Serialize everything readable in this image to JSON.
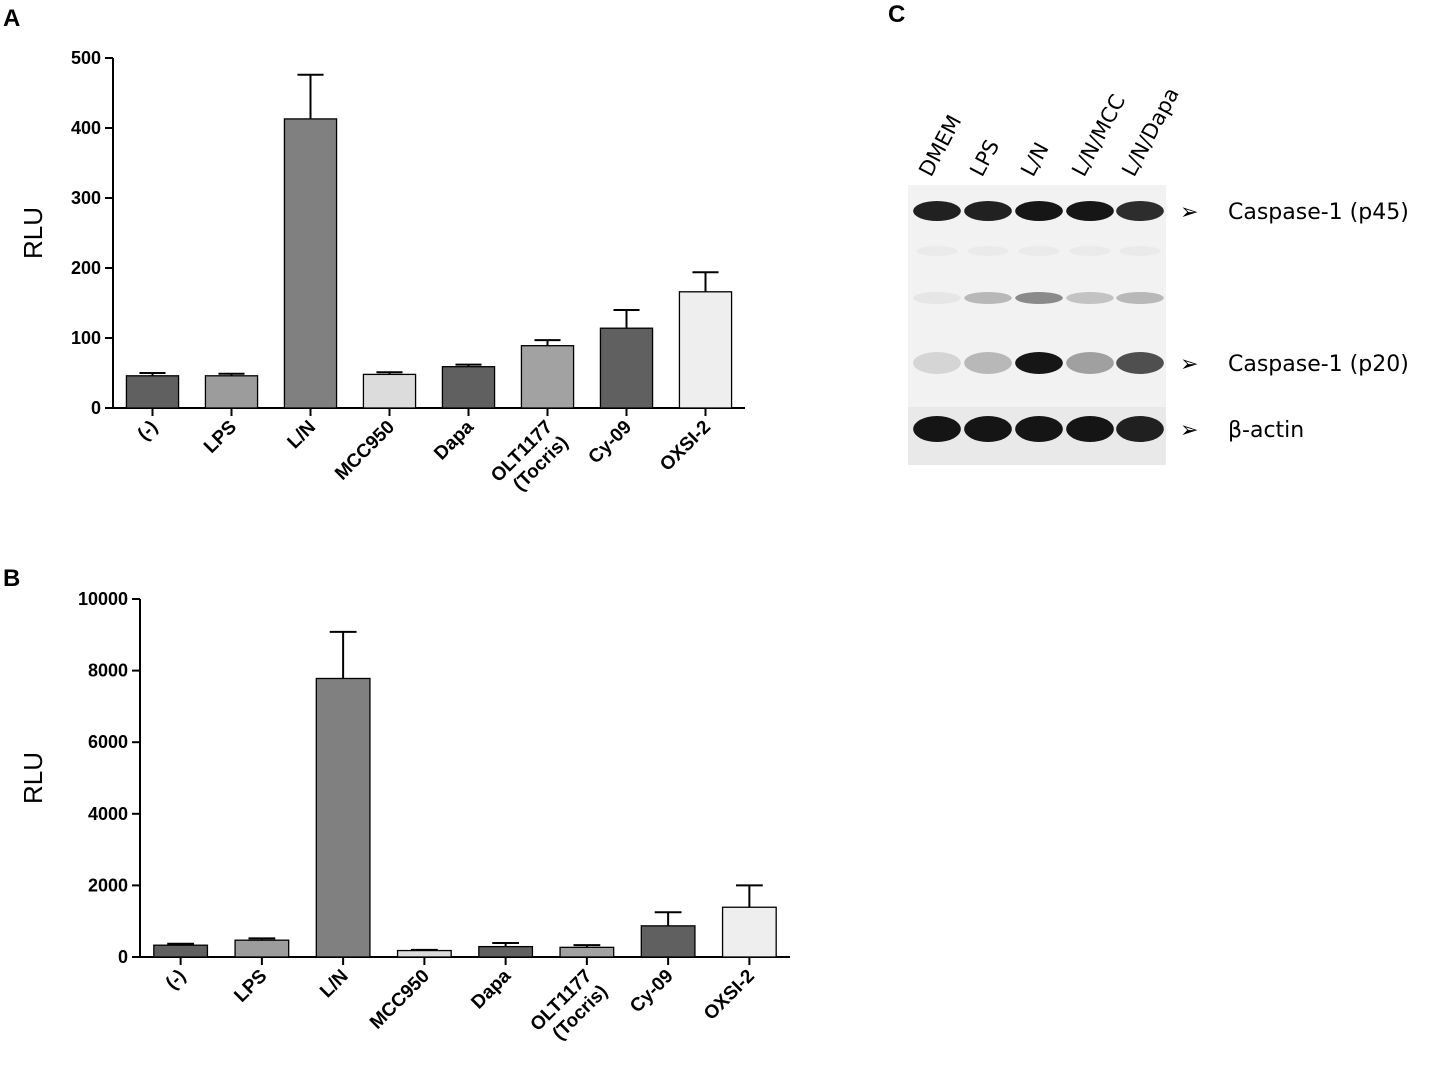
{
  "panels": {
    "a": "A",
    "b": "B",
    "c": "C"
  },
  "chart_data": [
    {
      "panel": "A",
      "type": "bar",
      "ylabel": "RLU",
      "ylim": [
        0,
        500
      ],
      "yticks": [
        "0",
        "100",
        "200",
        "300",
        "400",
        "500"
      ],
      "categories": [
        "(-)",
        "LPS",
        "L/N",
        "MCC950",
        "Dapa",
        "OLT1177\n(Tocris)",
        "Cy-09",
        "OXSI-2"
      ],
      "values": [
        46,
        46,
        413,
        48,
        59,
        89,
        114,
        166
      ],
      "errors": [
        4,
        3,
        63,
        3,
        3,
        8,
        26,
        28
      ],
      "colors": [
        "#606060",
        "#9c9c9c",
        "#808080",
        "#dcdcdc",
        "#606060",
        "#a2a2a2",
        "#606060",
        "#eeeeee"
      ],
      "grid": false
    },
    {
      "panel": "B",
      "type": "bar",
      "ylabel": "RLU",
      "ylim": [
        0,
        10000
      ],
      "yticks": [
        "0",
        "2000",
        "4000",
        "6000",
        "8000",
        "10000"
      ],
      "categories": [
        "(-)",
        "LPS",
        "L/N",
        "MCC950",
        "Dapa",
        "OLT1177\n(Tocris)",
        "Cy-09",
        "OXSI-2"
      ],
      "values": [
        330,
        470,
        7780,
        180,
        290,
        270,
        870,
        1390
      ],
      "errors": [
        40,
        50,
        1300,
        20,
        100,
        60,
        380,
        610
      ],
      "colors": [
        "#606060",
        "#9c9c9c",
        "#808080",
        "#dcdcdc",
        "#606060",
        "#a2a2a2",
        "#606060",
        "#eeeeee"
      ],
      "grid": false
    }
  ],
  "western_blot": {
    "lanes": [
      "DMEM",
      "LPS",
      "L/N",
      "L/N/MCC",
      "L/N/Dapa"
    ],
    "bands": [
      {
        "label": "Caspase-1 (p45)",
        "intensity": [
          0.9,
          0.9,
          0.95,
          0.95,
          0.85
        ]
      },
      {
        "label": "",
        "intensity": [
          0.05,
          0.25,
          0.45,
          0.2,
          0.25
        ]
      },
      {
        "label": "Caspase-1 (p20)",
        "intensity": [
          0.12,
          0.25,
          0.95,
          0.35,
          0.7
        ]
      },
      {
        "label": "β-actin",
        "intensity": [
          0.95,
          0.95,
          0.95,
          0.95,
          0.9
        ]
      }
    ],
    "arrow": "➢"
  }
}
